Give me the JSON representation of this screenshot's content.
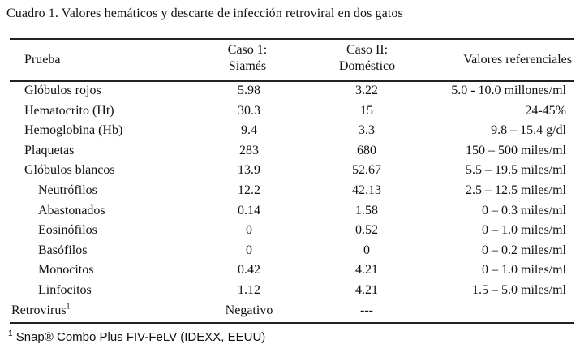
{
  "caption": "Cuadro 1.  Valores hemáticos y descarte de infección retroviral en dos gatos",
  "headers": {
    "prueba": "Prueba",
    "caso1_line1": "Caso 1:",
    "caso1_line2": "Siamés",
    "caso2_line1": "Caso II:",
    "caso2_line2": "Doméstico",
    "ref": "Valores referenciales"
  },
  "rows": [
    {
      "name": "Glóbulos rojos",
      "v1": "5.98",
      "v2": "3.22",
      "ref": "5.0 - 10.0 millones/ml"
    },
    {
      "name": "Hematocrito (Ht)",
      "v1": "30.3",
      "v2": "15",
      "ref": "24-45%"
    },
    {
      "name": "Hemoglobina (Hb)",
      "v1": "9.4",
      "v2": "3.3",
      "ref": "9.8 – 15.4 g/dl"
    },
    {
      "name": "Plaquetas",
      "v1": "283",
      "v2": "680",
      "ref": "150 – 500 miles/ml"
    },
    {
      "name": "Glóbulos blancos",
      "v1": "13.9",
      "v2": "52.67",
      "ref": "5.5 – 19.5 miles/ml"
    },
    {
      "name": "Neutrófilos",
      "v1": "12.2",
      "v2": "42.13",
      "ref": "2.5 – 12.5 miles/ml"
    },
    {
      "name": "Abastonados",
      "v1": "0.14",
      "v2": "1.58",
      "ref": "0 – 0.3 miles/ml"
    },
    {
      "name": "Eosinófilos",
      "v1": "0",
      "v2": "0.52",
      "ref": "0 – 1.0 miles/ml"
    },
    {
      "name": "Basófilos",
      "v1": "0",
      "v2": "0",
      "ref": "0 – 0.2 miles/ml"
    },
    {
      "name": "Monocitos",
      "v1": "0.42",
      "v2": "4.21",
      "ref": "0 – 1.0 miles/ml"
    },
    {
      "name": "Linfocitos",
      "v1": "1.12",
      "v2": "4.21",
      "ref": "1.5 – 5.0 miles/ml"
    },
    {
      "name": "Retrovirus",
      "sup": "1",
      "v1": "Negativo",
      "v2": "---",
      "ref": ""
    }
  ],
  "footnote": {
    "sup": "1",
    "text": " Snap® Combo Plus FIV-FeLV (IDEXX, EEUU)"
  }
}
